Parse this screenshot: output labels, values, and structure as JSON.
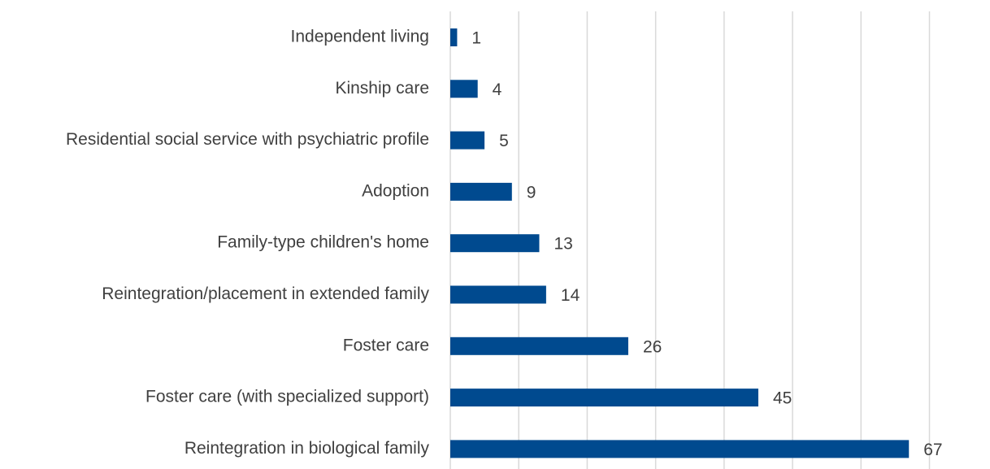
{
  "chart_data": {
    "type": "bar",
    "orientation": "horizontal",
    "categories": [
      "Independent living",
      "Kinship care",
      "Residential social service with psychiatric profile",
      "Adoption",
      "Family-type children's home",
      "Reintegration/placement in extended family",
      "Foster care",
      "Foster care (with specialized support)",
      "Reintegration in biological family"
    ],
    "values": [
      1,
      4,
      5,
      9,
      13,
      14,
      26,
      45,
      67
    ],
    "color": "#004a8f",
    "xlim": [
      0,
      70
    ],
    "xticks": [
      0,
      10,
      20,
      30,
      40,
      50,
      60,
      70
    ],
    "grid": true
  }
}
